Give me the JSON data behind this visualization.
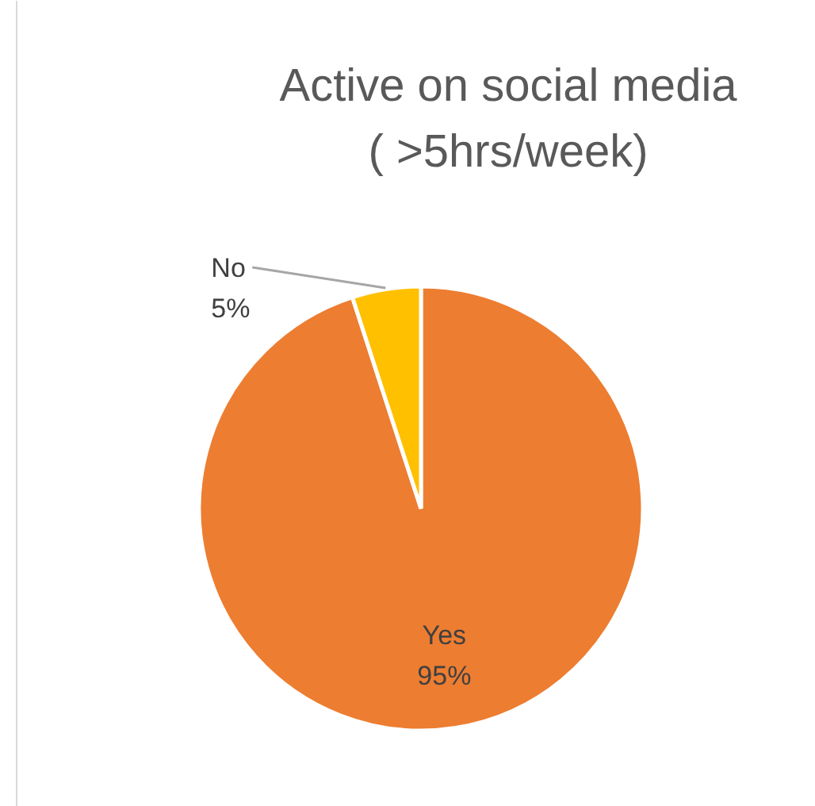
{
  "chart_data": {
    "type": "pie",
    "title": "Active on social media\n( >5hrs/week)",
    "categories": [
      "Yes",
      "No"
    ],
    "values": [
      95,
      5
    ],
    "colors": [
      "#ed7d31",
      "#ffc000"
    ],
    "value_labels": [
      "95%",
      "5%"
    ]
  }
}
